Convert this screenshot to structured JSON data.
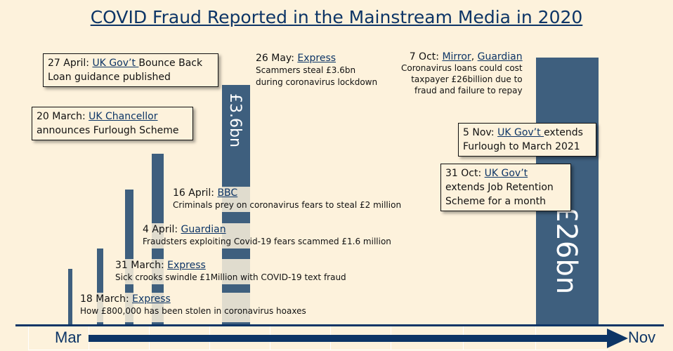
{
  "title": "COVID Fraud Reported in the Mainstream Media in 2020",
  "colors": {
    "background": "#fdf2dc",
    "bar": "#3e5f7e",
    "accent": "#0d3566"
  },
  "bars": [
    {
      "label": ""
    },
    {
      "label": ""
    },
    {
      "label": ""
    },
    {
      "label": ""
    },
    {
      "label": "£3.6bn"
    },
    {
      "label": "£26bn"
    }
  ],
  "callouts": {
    "apr27": {
      "date": "27 April: ",
      "source": "UK Gov’t ",
      "text1": " Bounce Back",
      "text2": "Loan guidance published"
    },
    "mar20": {
      "date": "20 March: ",
      "source": "UK Chancellor",
      "text2": "announces Furlough Scheme"
    },
    "nov5": {
      "date": "5 Nov: ",
      "source": "UK Gov’t ",
      "text1": " extends",
      "text2": "Furlough to March 2021"
    },
    "oct31": {
      "date": "31 Oct: ",
      "source": "UK Gov’t",
      "text2": "extends Job Retention",
      "text3": "Scheme for a month"
    }
  },
  "notes": {
    "may26": {
      "date": "26 May: ",
      "source": "Express",
      "text": "Scammers steal £3.6bn",
      "text2": "during coronavirus lockdown"
    },
    "oct7": {
      "date": "7 Oct: ",
      "source": "Mirror",
      "sep": ", ",
      "source2": "Guardian",
      "text": "Coronavirus loans could cost",
      "text2": "taxpayer £26billion  due to",
      "text3": "fraud and failure to repay"
    },
    "apr16": {
      "date": "16 April: ",
      "source": "BBC",
      "text": "Criminals prey on coronavirus fears to steal  £2 million"
    },
    "apr4": {
      "date": "4 April: ",
      "source": "Guardian",
      "text": "Fraudsters exploiting Covid-19 fears  scammed £1.6 million"
    },
    "mar31": {
      "date": "31 March: ",
      "source": "Express",
      "text": "Sick crooks swindle £1Million with COVID-19 text fraud"
    },
    "mar18": {
      "date": "18 March: ",
      "source": "Express",
      "text": "How £800,000 has been stolen in coronavirus hoaxes"
    }
  },
  "axis": {
    "start": "Mar",
    "end": "Nov"
  }
}
